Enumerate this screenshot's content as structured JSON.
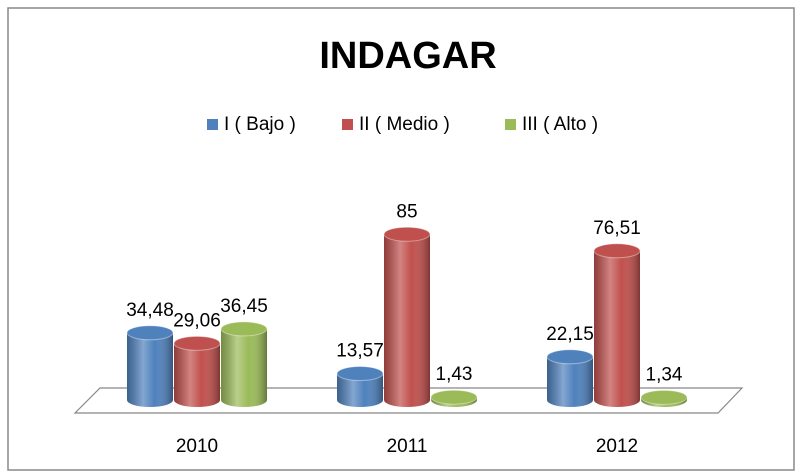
{
  "chart_data": {
    "type": "bar3d",
    "title": "INDAGAR",
    "categories": [
      "2010",
      "2011",
      "2012"
    ],
    "series": [
      {
        "name": "I ( Bajo )",
        "color": "#4f81bd",
        "values": [
          34.48,
          13.57,
          22.15
        ],
        "value_labels": [
          "34,48",
          "13,57",
          "22,15"
        ]
      },
      {
        "name": "II ( Medio )",
        "color": "#c0504d",
        "values": [
          29.06,
          85,
          76.51
        ],
        "value_labels": [
          "29,06",
          "85",
          "76,51"
        ]
      },
      {
        "name": "III ( Alto )",
        "color": "#9bbb59",
        "values": [
          36.45,
          1.43,
          1.34
        ],
        "value_labels": [
          "36,45",
          "1,43",
          "1,34"
        ]
      }
    ],
    "legend": "top"
  }
}
